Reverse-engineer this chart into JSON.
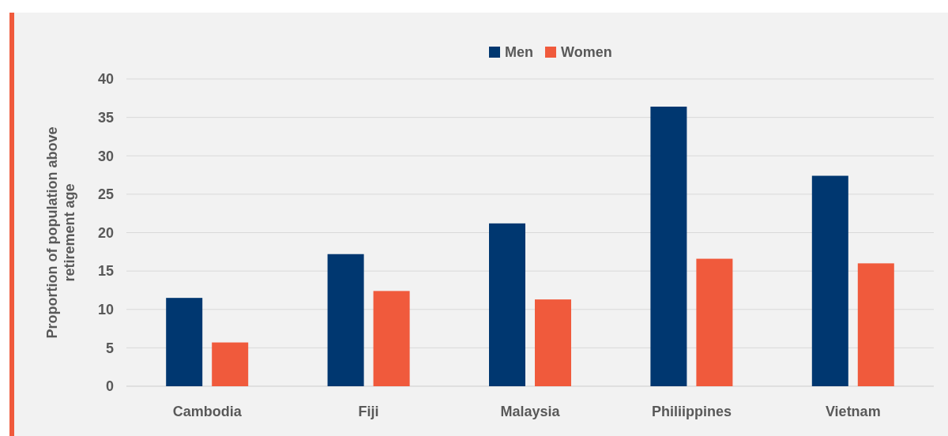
{
  "chart_data": {
    "type": "bar",
    "ylabel": "Proportion of population above retirement age",
    "categories": [
      "Cambodia",
      "Fiji",
      "Malaysia",
      "Philiippines",
      "Vietnam"
    ],
    "series": [
      {
        "name": "Men",
        "color": "#003770",
        "values": [
          11.5,
          17.2,
          21.2,
          36.4,
          27.4
        ]
      },
      {
        "name": "Women",
        "color": "#f05a3c",
        "values": [
          5.7,
          12.4,
          11.3,
          16.6,
          16.0
        ]
      }
    ],
    "ylim": [
      0,
      40
    ],
    "yticks": [
      0,
      5,
      10,
      15,
      20,
      25,
      30,
      35,
      40
    ],
    "grid": "y",
    "legend": "top"
  }
}
